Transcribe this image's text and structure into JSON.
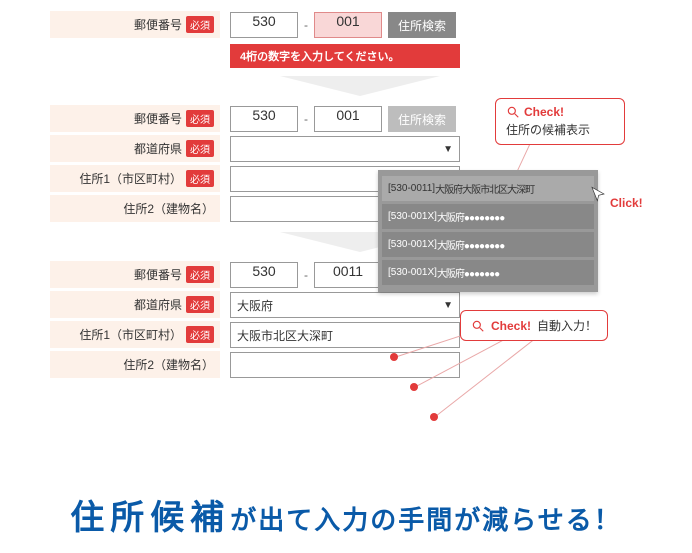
{
  "colors": {
    "accent": "#e23b3b",
    "badgeBg": "#e23b3b",
    "labelBg": "#fdf1e9",
    "btn": "#888888",
    "headline": "#0a5aa8"
  },
  "badge": "必須",
  "labels": {
    "zip": "郵便番号",
    "pref": "都道府県",
    "addr1": "住所1（市区町村）",
    "addr2": "住所2（建物名）"
  },
  "searchBtn": "住所検索",
  "step1": {
    "zipA": "530",
    "zipB": "001",
    "error": "4桁の数字を入力してください。"
  },
  "step2": {
    "zipA": "530",
    "zipB": "001"
  },
  "step3": {
    "zipA": "530",
    "zipB": "0011",
    "pref": "大阪府",
    "addr1": "大阪市北区大深町"
  },
  "callout1": {
    "check": "Check!",
    "sub": "住所の候補表示"
  },
  "callout2": {
    "check": "Check!",
    "sub": "自動入力！"
  },
  "clickLabel": "Click!",
  "popup": {
    "items": [
      {
        "code": "[530-0011]",
        "text": "大阪府大阪市北区大深町",
        "selected": true
      },
      {
        "code": "[530-001X]",
        "text": "大阪府●●●●●●●●",
        "selected": false
      },
      {
        "code": "[530-001X]",
        "text": "大阪府●●●●●●●●",
        "selected": false
      },
      {
        "code": "[530-001X]",
        "text": "大阪府●●●●●●●",
        "selected": false
      }
    ]
  },
  "headline": {
    "big": "住所候補",
    "rest": "が出て入力の手間が減らせる！"
  }
}
